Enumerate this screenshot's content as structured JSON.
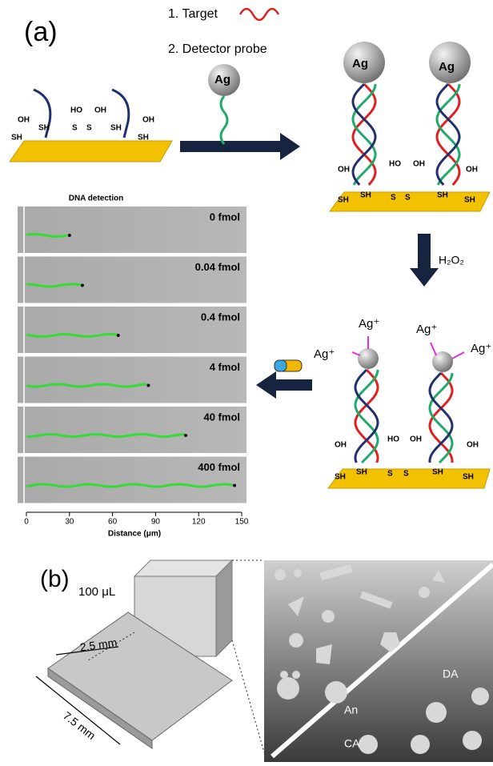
{
  "panel_a": {
    "label": "(a)",
    "step1": "1. Target",
    "step2": "2. Detector probe",
    "ag": "Ag",
    "ag_ion": "Ag⁺",
    "oh": "OH",
    "ho": "HO",
    "sh": "SH",
    "s": "S",
    "oxidant": "H₂O₂",
    "chart": {
      "type": "track",
      "title": "DNA detection",
      "x_label": "Distance (μm)",
      "xlim": [
        0,
        150
      ],
      "xticks": [
        0,
        30,
        60,
        90,
        120,
        150
      ],
      "categories": [
        "0 fmol",
        "0.04 fmol",
        "0.4 fmol",
        "4 fmol",
        "40 fmol",
        "400 fmol"
      ],
      "values": [
        30,
        39,
        64,
        85,
        111,
        145
      ],
      "color": "#33dd33"
    }
  },
  "panel_b": {
    "label": "(b)",
    "volume": "100 μL",
    "width": "2.5 mm",
    "length": "7.5 mm",
    "da": "DA",
    "an": "An",
    "ca": "CA"
  }
}
